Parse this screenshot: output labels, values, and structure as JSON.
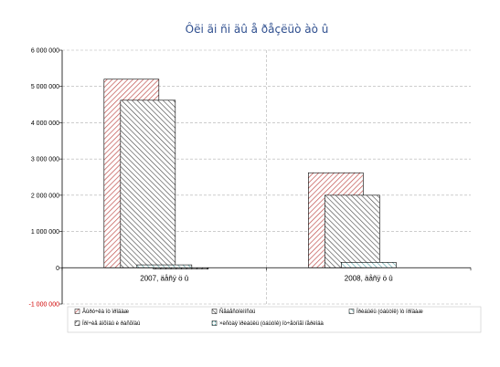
{
  "chart_data": {
    "type": "bar",
    "title": "Ôëi ãi ñi äû å ðåçëüò àò û",
    "categories": [
      "2007, äåñÿ ö û",
      "2008, äåñÿ ö û"
    ],
    "series": [
      {
        "name": "Âûðó÷êà îò ïðîäàæ",
        "values": [
          5200000,
          2620000
        ],
        "color": "#c0504d"
      },
      {
        "name": "Ñåáåñòîèìîñòü",
        "values": [
          4620000,
          2000000
        ],
        "color": "#404040"
      },
      {
        "name": "Ïðèáûëü (óáûòîê) îò ïðîäàæ",
        "values": [
          80000,
          150000
        ],
        "color": "#4f9fa0"
      },
      {
        "name": "Ïðî÷èå äîõîäû è ðàñõîäû",
        "values": [
          -30000,
          0
        ],
        "color": "#404040"
      },
      {
        "name": "×èñòàÿ ïðèáûëü (óáûòîê) îò÷åòíîãî ïåðèîäà",
        "values": [
          0,
          0
        ],
        "color": "#4f9fa0"
      }
    ],
    "ylim": [
      -1000000,
      6000000
    ],
    "yticks": [
      6000000,
      5000000,
      4000000,
      3000000,
      2000000,
      1000000,
      0,
      -1000000
    ],
    "ytick_labels": [
      "6 000 000",
      "5 000 000",
      "4 000 000",
      "3 000 000",
      "2 000 000",
      "1 000 000",
      "0",
      "-1 000 000"
    ],
    "grid": true,
    "legend_position": "bottom"
  }
}
